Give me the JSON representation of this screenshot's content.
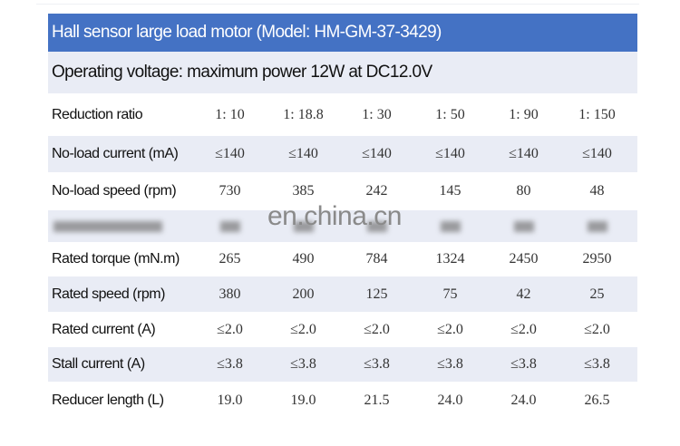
{
  "title": "Hall sensor large load motor (Model: HM-GM-37-3429)",
  "subtitle": "Operating voltage: maximum power 12W at DC12.0V",
  "colors": {
    "header_bg": "#4472c4",
    "stripe_bg": "#e9ecf5"
  },
  "rows": [
    {
      "label": "Reduction ratio",
      "values": [
        "1: 10",
        "1: 18.8",
        "1: 30",
        "1: 50",
        "1: 90",
        "1: 150"
      ]
    },
    {
      "label": "No-load current (mA)",
      "values": [
        "≤140",
        "≤140",
        "≤140",
        "≤140",
        "≤140",
        "≤140"
      ]
    },
    {
      "label": "No-load speed (rpm)",
      "values": [
        "730",
        "385",
        "242",
        "145",
        "80",
        "48"
      ]
    },
    {
      "label": "Rated torque (mN.m)",
      "values": [
        "265",
        "490",
        "784",
        "1324",
        "2450",
        "2950"
      ]
    },
    {
      "label": "Rated speed (rpm)",
      "values": [
        "380",
        "200",
        "125",
        "75",
        "42",
        "25"
      ]
    },
    {
      "label": "Rated current (A)",
      "values": [
        "≤2.0",
        "≤2.0",
        "≤2.0",
        "≤2.0",
        "≤2.0",
        "≤2.0"
      ]
    },
    {
      "label": "Stall current (A)",
      "values": [
        "≤3.8",
        "≤3.8",
        "≤3.8",
        "≤3.8",
        "≤3.8",
        "≤3.8"
      ]
    },
    {
      "label": "Reducer length (L)",
      "values": [
        "19.0",
        "19.0",
        "21.5",
        "24.0",
        "24.0",
        "26.5"
      ]
    }
  ],
  "watermark": "en.china.cn"
}
